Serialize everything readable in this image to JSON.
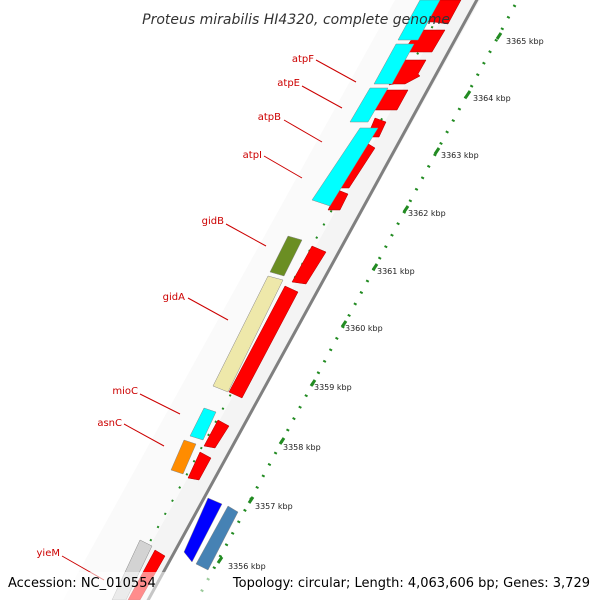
{
  "header": {
    "title": "Proteus mirabilis HI4320, complete genome"
  },
  "footer": {
    "accession": "Accession: NC_010554",
    "topology": "Topology: circular; Length: 4,063,606 bp; Genes: 3,729"
  },
  "scale": {
    "ticks": [
      "3365 kbp",
      "3364 kbp",
      "3363 kbp",
      "3362 kbp",
      "3361 kbp",
      "3360 kbp",
      "3359 kbp",
      "3358 kbp",
      "3357 kbp",
      "3356 kbp"
    ]
  },
  "genes": [
    "atpF",
    "atpE",
    "atpB",
    "atpI",
    "gidB",
    "gidA",
    "mioC",
    "asnC",
    "yieM"
  ],
  "colors": {
    "cds": "#ff0000",
    "cyan_gene": "#00ffff",
    "gidB": "#6b8e23",
    "gidA": "#eee8aa",
    "asnC": "#ff8c00",
    "blue_gene": "#0000ff",
    "steelblue_gene": "#4682b4",
    "grey_gene": "#d3d3d3",
    "label": "#cc0000",
    "dots": "#228b22",
    "backbone": "#808080"
  }
}
